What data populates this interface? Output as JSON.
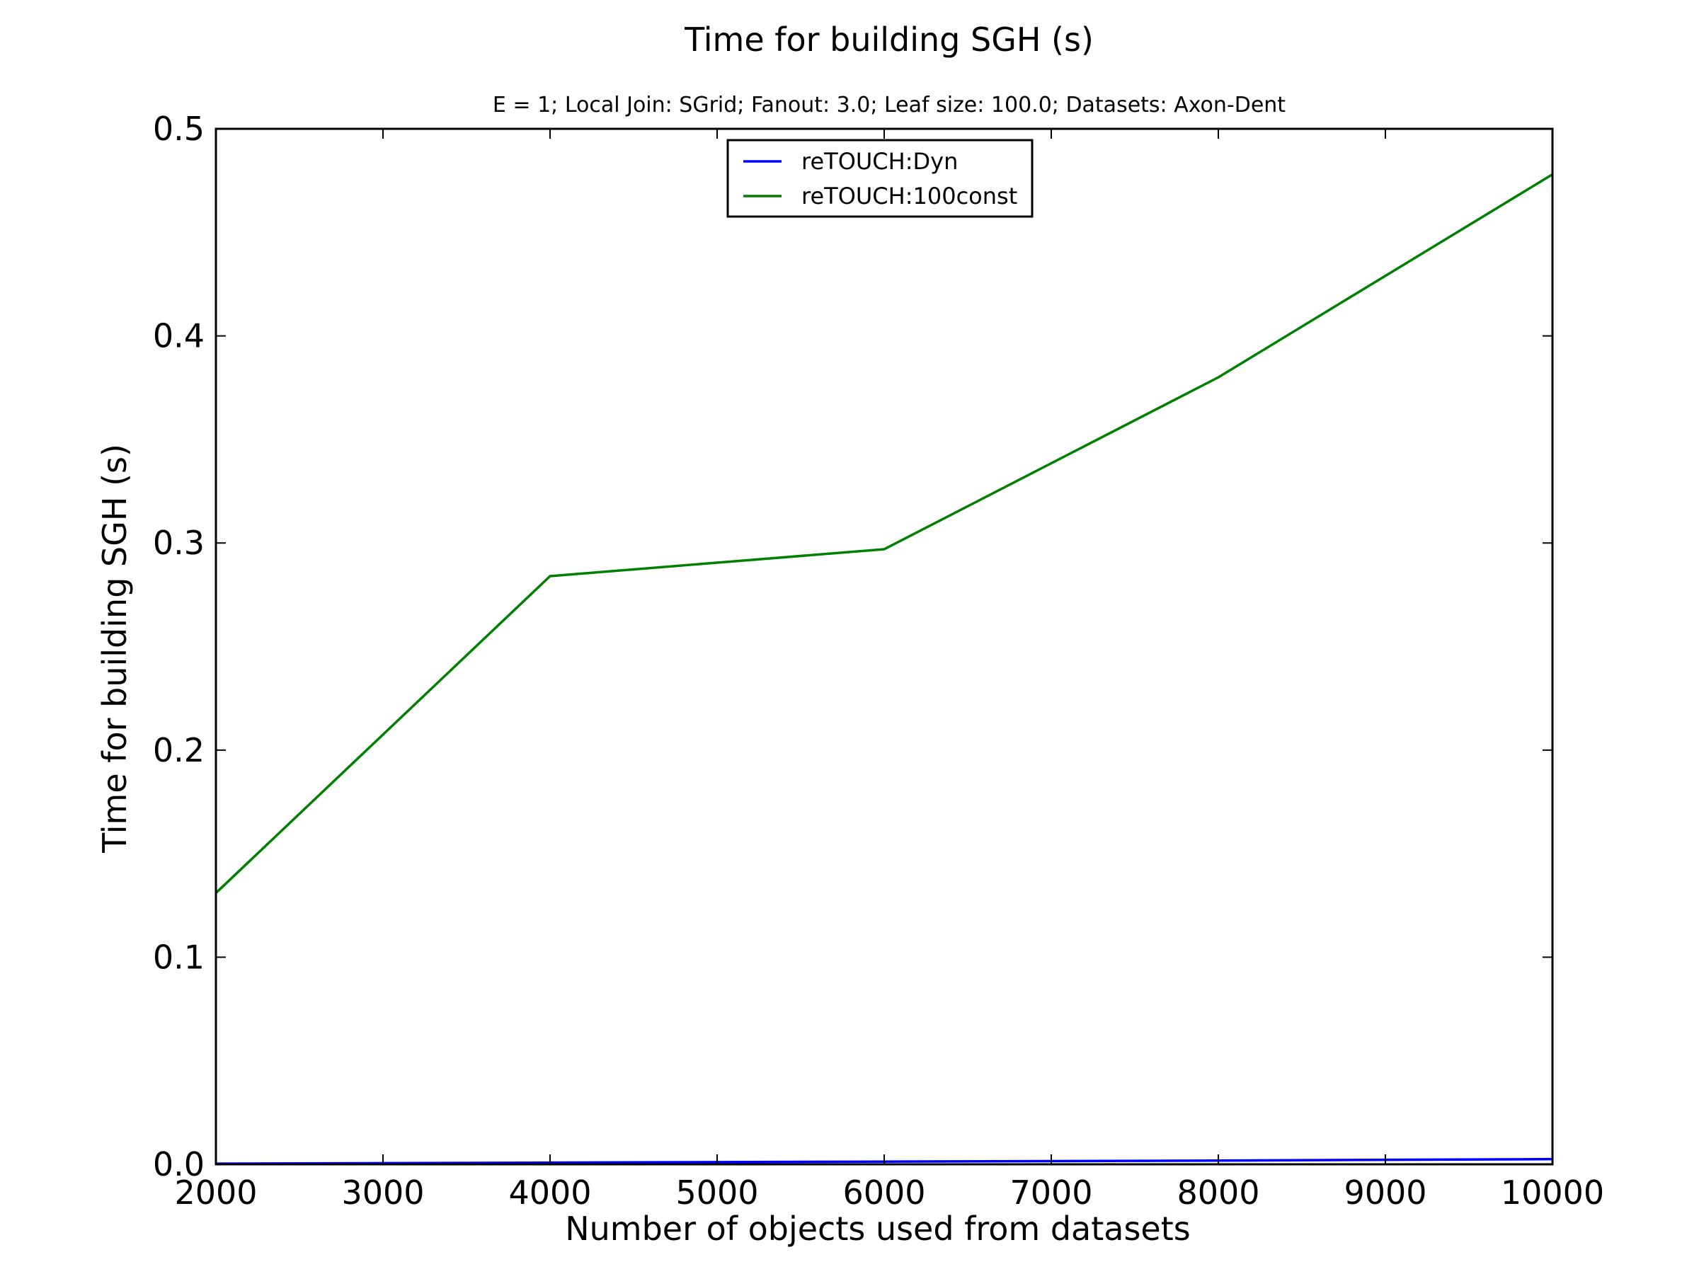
{
  "chart_data": {
    "type": "line",
    "title": "Time for building SGH (s)",
    "subtitle": "E = 1; Local Join: SGrid; Fanout: 3.0; Leaf size: 100.0; Datasets: Axon-Dent",
    "xlabel": "Number of objects used from datasets",
    "ylabel": "Time for building SGH (s)",
    "xlim": [
      2000,
      10000
    ],
    "ylim": [
      0.0,
      0.5
    ],
    "xticks": [
      2000,
      3000,
      4000,
      5000,
      6000,
      7000,
      8000,
      9000,
      10000
    ],
    "xtick_labels": [
      "2000",
      "3000",
      "4000",
      "5000",
      "6000",
      "7000",
      "8000",
      "9000",
      "10000"
    ],
    "yticks": [
      0.0,
      0.1,
      0.2,
      0.3,
      0.4,
      0.5
    ],
    "ytick_labels": [
      "0.0",
      "0.1",
      "0.2",
      "0.3",
      "0.4",
      "0.5"
    ],
    "grid": false,
    "legend_position": "top-center",
    "x": [
      2000,
      4000,
      6000,
      8000,
      10000
    ],
    "series": [
      {
        "name": "reTOUCH:Dyn",
        "color": "#0000ff",
        "values": [
          0.0003,
          0.0008,
          0.0013,
          0.0018,
          0.0025
        ]
      },
      {
        "name": "reTOUCH:100const",
        "color": "#008000",
        "values": [
          0.131,
          0.284,
          0.297,
          0.38,
          0.478
        ]
      }
    ]
  }
}
